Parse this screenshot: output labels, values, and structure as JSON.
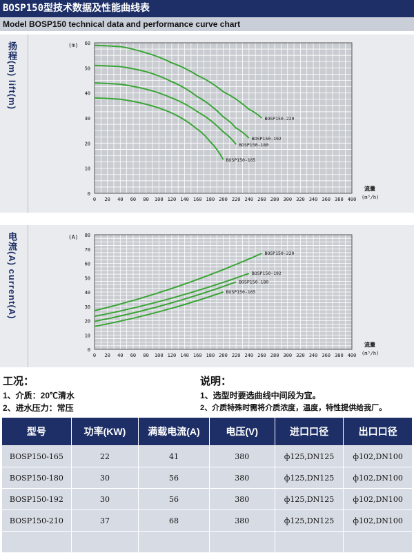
{
  "header": {
    "title": "BOSP150型技术数据及性能曲线表",
    "subtitle": "Model BOSP150 technical data and performance curve chart"
  },
  "chart_data": [
    {
      "type": "line",
      "ylabel": "扬程(m) lift(m)",
      "yunit": "(m)",
      "xlabel": "流量 (m³/h)",
      "xlim": [
        0,
        400
      ],
      "ylim": [
        0,
        60
      ],
      "x_ticks": [
        "0",
        "20",
        "40",
        "60",
        "80",
        "100",
        "120",
        "140",
        "160",
        "180",
        "200",
        "220",
        "240",
        "260",
        "280",
        "300",
        "320",
        "340",
        "360",
        "380",
        "400"
      ],
      "y_ticks": [
        "0",
        "10",
        "20",
        "30",
        "40",
        "50",
        "60"
      ],
      "grid": true,
      "series": [
        {
          "name": "BOSP150-220",
          "x": [
            0,
            40,
            80,
            120,
            160,
            200,
            240,
            260
          ],
          "y": [
            59,
            58.5,
            56,
            52,
            47,
            40.5,
            33.5,
            30
          ]
        },
        {
          "name": "BOSP150-192",
          "x": [
            0,
            40,
            80,
            120,
            160,
            200,
            220,
            240
          ],
          "y": [
            51,
            50.5,
            48.5,
            44.5,
            38.5,
            30.5,
            26,
            22
          ]
        },
        {
          "name": "BOSP150-180",
          "x": [
            0,
            40,
            80,
            120,
            160,
            200,
            220
          ],
          "y": [
            44,
            43.5,
            41.5,
            38,
            32.5,
            24.5,
            19.5
          ]
        },
        {
          "name": "BOSP150-165",
          "x": [
            0,
            40,
            80,
            120,
            160,
            180,
            200
          ],
          "y": [
            38,
            37.5,
            35.5,
            32,
            25.5,
            20.5,
            13.5
          ]
        }
      ]
    },
    {
      "type": "line",
      "ylabel": "电流(A) current(A)",
      "yunit": "(A)",
      "xlabel": "流量 (m³/h)",
      "xlim": [
        0,
        400
      ],
      "ylim": [
        0,
        80
      ],
      "x_ticks": [
        "0",
        "20",
        "40",
        "60",
        "80",
        "100",
        "120",
        "140",
        "160",
        "180",
        "200",
        "220",
        "240",
        "260",
        "280",
        "300",
        "320",
        "340",
        "360",
        "380",
        "400"
      ],
      "y_ticks": [
        "0",
        "10",
        "20",
        "30",
        "40",
        "50",
        "60",
        "70",
        "80"
      ],
      "grid": true,
      "series": [
        {
          "name": "BOSP150-220",
          "x": [
            0,
            260
          ],
          "y": [
            27,
            67
          ]
        },
        {
          "name": "BOSP150-192",
          "x": [
            0,
            240
          ],
          "y": [
            23,
            53
          ]
        },
        {
          "name": "BOSP150-180",
          "x": [
            0,
            220
          ],
          "y": [
            19.5,
            47
          ]
        },
        {
          "name": "BOSP150-165",
          "x": [
            0,
            200
          ],
          "y": [
            16,
            40
          ]
        }
      ]
    }
  ],
  "notes_left": {
    "heading": "工况：",
    "lines": [
      "1、介质：20℃清水",
      "2、进水压力：常压"
    ]
  },
  "notes_right": {
    "heading": "说明：",
    "lines": [
      "1、选型时要选曲线中间段为宜。",
      "2、介质特殊时需将介质浓度，温度，特性提供给我厂。"
    ]
  },
  "table": {
    "headers": [
      "型号",
      "功率(KW)",
      "满载电流(A)",
      "电压(V)",
      "进口口径",
      "出口口径"
    ],
    "rows": [
      [
        "BOSP150-165",
        "22",
        "41",
        "380",
        "ф125,DN125",
        "ф102,DN100"
      ],
      [
        "BOSP150-180",
        "30",
        "56",
        "380",
        "ф125,DN125",
        "ф102,DN100"
      ],
      [
        "BOSP150-192",
        "30",
        "56",
        "380",
        "ф125,DN125",
        "ф102,DN100"
      ],
      [
        "BOSP150-210",
        "37",
        "68",
        "380",
        "ф125,DN125",
        "ф102,DN100"
      ],
      [
        "",
        "",
        "",
        "",
        "",
        ""
      ]
    ]
  },
  "colors": {
    "header_bg": "#1d2f66",
    "curve": "#3aa535",
    "panel_bg": "#e9ebee",
    "plot_bg": "#c9ccd1",
    "table_cell": "#d7dbe3"
  }
}
